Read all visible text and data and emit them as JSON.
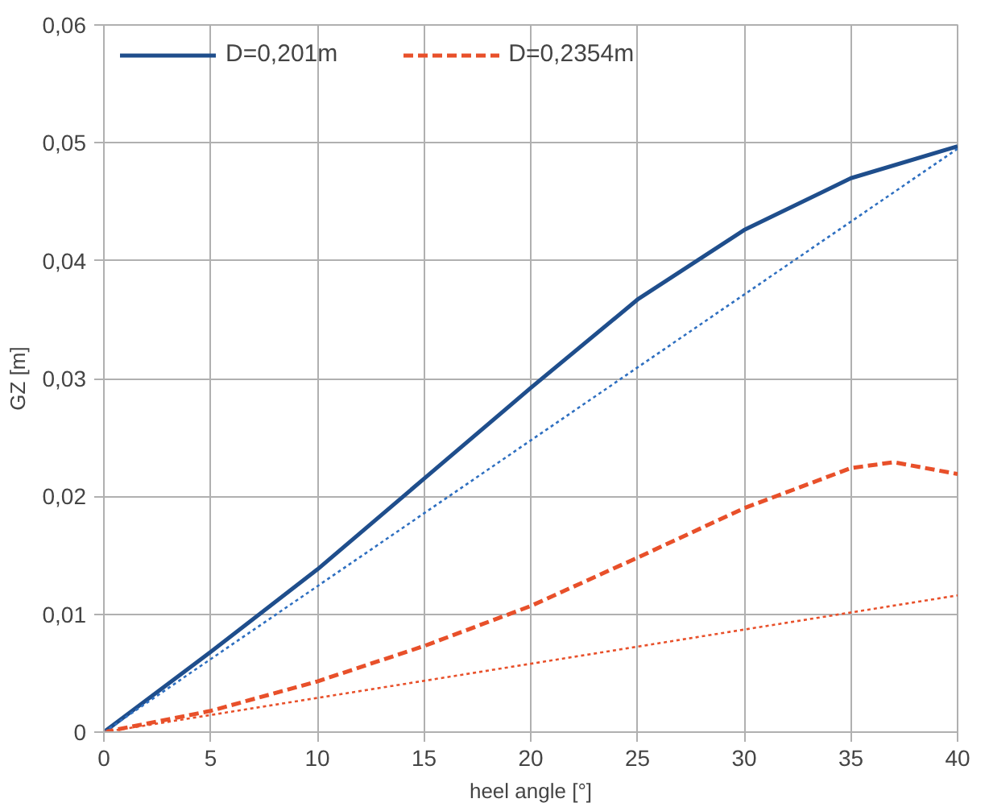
{
  "chart_data": {
    "type": "line",
    "xlabel": "heel angle [°]",
    "ylabel": "GZ [m]",
    "xlim": [
      0,
      40
    ],
    "xticks": [
      0,
      5,
      10,
      15,
      20,
      25,
      30,
      35,
      40
    ],
    "ylim": [
      0,
      0.06
    ],
    "yticks": [
      {
        "value": 0,
        "label": "0"
      },
      {
        "value": 0.01,
        "label": "0,01"
      },
      {
        "value": 0.02,
        "label": "0,02"
      },
      {
        "value": 0.03,
        "label": "0,03"
      },
      {
        "value": 0.04,
        "label": "0,04"
      },
      {
        "value": 0.05,
        "label": "0,05"
      },
      {
        "value": 0.06,
        "label": "0,06"
      }
    ],
    "grid": true,
    "legend": "top left",
    "marker": "none",
    "series": [
      {
        "name": "D=0,201m",
        "color": "#1f4e8c",
        "line_style": "solid",
        "x": [
          0,
          5,
          10,
          15,
          20,
          25,
          30,
          35,
          40
        ],
        "values": [
          0,
          0.0068,
          0.0138,
          0.0215,
          0.0292,
          0.0367,
          0.0426,
          0.047,
          0.0497
        ]
      },
      {
        "name": "D=0,2354m",
        "color": "#e8502a",
        "line_style": "dashed",
        "x": [
          0,
          5,
          10,
          15,
          20,
          25,
          30,
          35,
          37,
          40
        ],
        "values": [
          0,
          0.0018,
          0.0043,
          0.0073,
          0.0107,
          0.0148,
          0.019,
          0.0224,
          0.0229,
          0.0219
        ]
      },
      {
        "color": "#2e6fc0",
        "line_style": "dotted",
        "x": [
          0,
          40
        ],
        "values": [
          0,
          0.0495
        ]
      },
      {
        "color": "#e8502a",
        "line_style": "dotted",
        "x": [
          0,
          40
        ],
        "values": [
          0,
          0.0116
        ]
      }
    ]
  }
}
